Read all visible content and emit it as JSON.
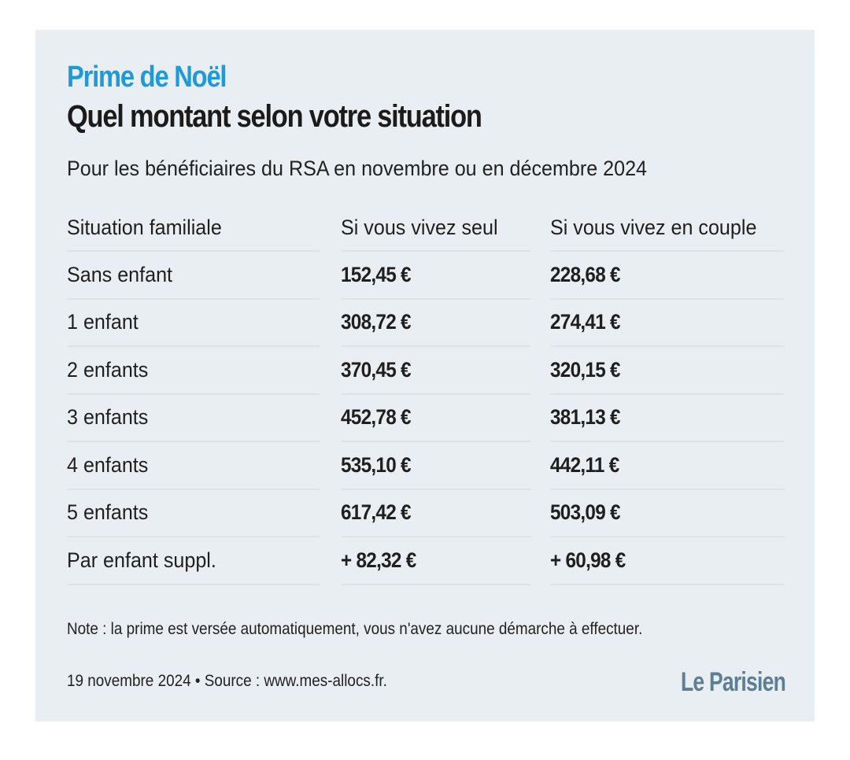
{
  "header": {
    "kicker": "Prime de Noël",
    "title": "Quel montant selon votre situation",
    "subtitle": "Pour les bénéficiaires du RSA en novembre ou en décembre 2024"
  },
  "chart_data": {
    "type": "table",
    "columns": [
      "Situation familiale",
      "Si vous vivez seul",
      "Si vous vivez en couple"
    ],
    "rows": [
      [
        "Sans enfant",
        "152,45 €",
        "228,68 €"
      ],
      [
        "1 enfant",
        "308,72 €",
        "274,41 €"
      ],
      [
        "2 enfants",
        "370,45 €",
        "320,15 €"
      ],
      [
        "3 enfants",
        "452,78 €",
        "381,13 €"
      ],
      [
        "4 enfants",
        "535,10 €",
        "442,11 €"
      ],
      [
        "5 enfants",
        "617,42 €",
        "503,09 €"
      ],
      [
        "Par enfant suppl.",
        "+ 82,32 €",
        "+ 60,98 €"
      ]
    ]
  },
  "footer": {
    "note": "Note : la prime est versée automatiquement, vous n'avez aucune démarche à effectuer.",
    "source": "19 novembre 2024 • Source : www.mes-allocs.fr.",
    "logo_text": "Le Parisien"
  },
  "colors": {
    "background": "#e9eef2",
    "accent": "#1e9ad6",
    "text": "#1b1b1b",
    "divider": "#dde3e8",
    "logo": "#5d7f93"
  }
}
